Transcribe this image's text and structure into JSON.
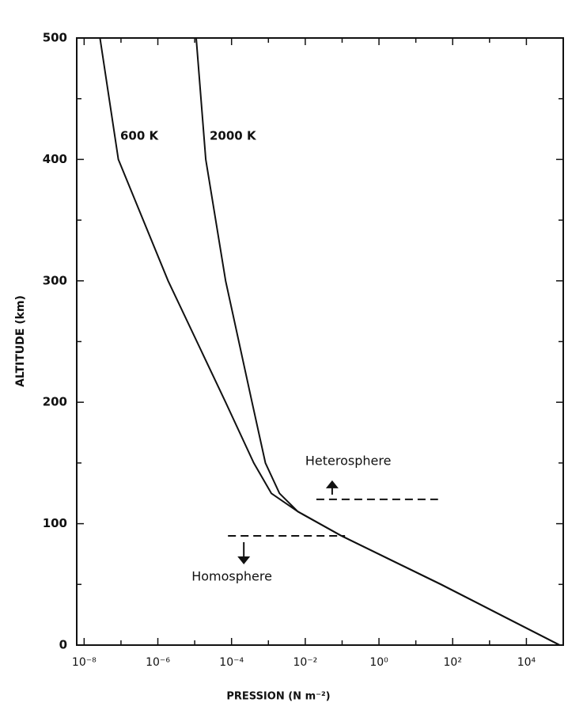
{
  "chart_data": {
    "type": "line",
    "xlabel": "PRESSION (N m⁻²)",
    "ylabel": "ALTITUDE (km)",
    "xscale": "log",
    "xlim": [
      6.3e-09,
      100000
    ],
    "ylim": [
      0,
      500
    ],
    "xticks": [
      {
        "value": 1e-08,
        "label": "10⁻⁸"
      },
      {
        "value": 1e-06,
        "label": "10⁻⁶"
      },
      {
        "value": 0.0001,
        "label": "10⁻⁴"
      },
      {
        "value": 0.01,
        "label": "10⁻²"
      },
      {
        "value": 1,
        "label": "10⁰"
      },
      {
        "value": 100,
        "label": "10²"
      },
      {
        "value": 10000,
        "label": "10⁴"
      }
    ],
    "xminorticks": [
      1e-07,
      1e-05,
      0.001,
      0.1,
      10,
      1000
    ],
    "yticks": [
      0,
      100,
      200,
      300,
      400,
      500
    ],
    "yminorticks": [
      50,
      150,
      250,
      350,
      450
    ],
    "series": [
      {
        "name": "600 K",
        "color": "#111111",
        "x": [
          2.7e-08,
          8.5e-08,
          1.9e-06,
          6.9e-05,
          0.0004,
          0.0012,
          0.0063,
          0.095,
          48,
          80000
        ],
        "y": [
          500,
          400,
          300,
          200,
          150,
          125,
          110,
          90,
          50,
          0
        ]
      },
      {
        "name": "2000 K",
        "color": "#111111",
        "x": [
          1.1e-05,
          2e-05,
          6.9e-05,
          0.00036,
          0.00083,
          0.002,
          0.0063,
          0.095,
          48,
          80000
        ],
        "y": [
          500,
          400,
          300,
          200,
          150,
          125,
          110,
          90,
          50,
          0
        ]
      }
    ],
    "annotations": [
      {
        "text": "Heterosphere",
        "y": 120,
        "xrange": [
          0.02,
          40
        ],
        "direction": "up"
      },
      {
        "text": "Homosphere",
        "y": 90,
        "xrange": [
          8e-05,
          0.12
        ],
        "direction": "down"
      }
    ]
  }
}
